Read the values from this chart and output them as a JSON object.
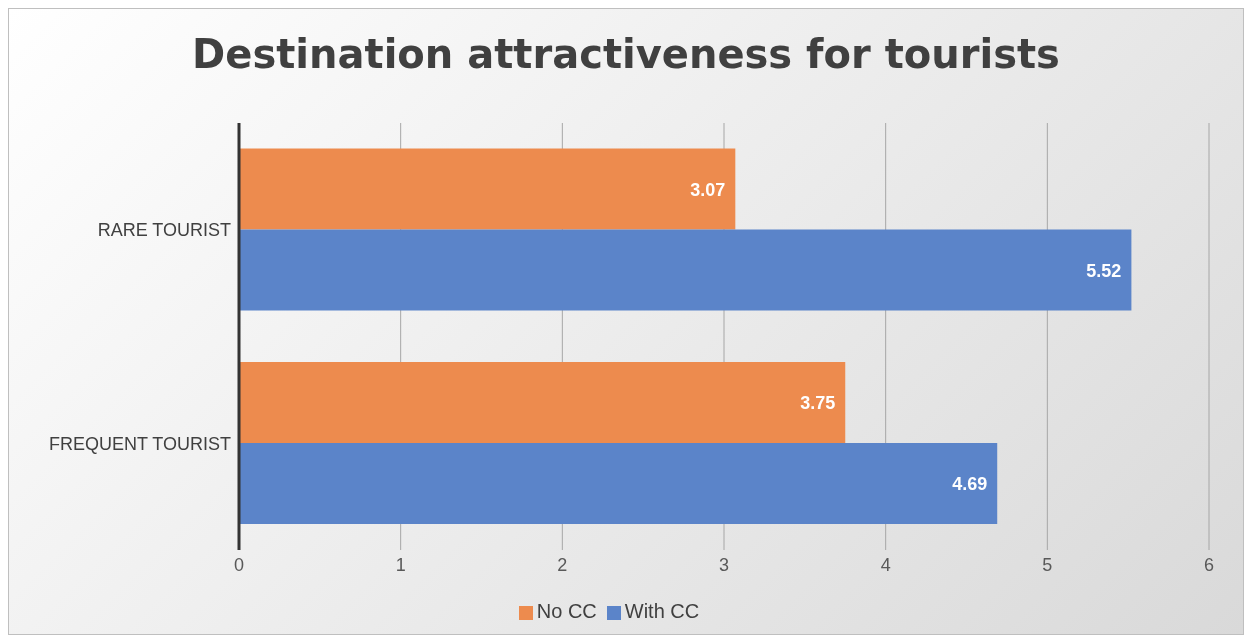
{
  "chart_data": {
    "type": "bar",
    "orientation": "horizontal",
    "title": "Destination attractiveness for tourists",
    "categories": [
      "RARE TOURIST",
      "FREQUENT TOURIST"
    ],
    "series": [
      {
        "name": "No CC",
        "color": "#ed8b4e",
        "values": [
          3.07,
          3.75
        ]
      },
      {
        "name": "With CC",
        "color": "#5b84c9",
        "values": [
          5.52,
          4.69
        ]
      }
    ],
    "xlim": [
      0,
      6
    ],
    "xticks": [
      0,
      1,
      2,
      3,
      4,
      5,
      6
    ],
    "grid": "x",
    "legend": "bottom",
    "data_labels": true
  }
}
